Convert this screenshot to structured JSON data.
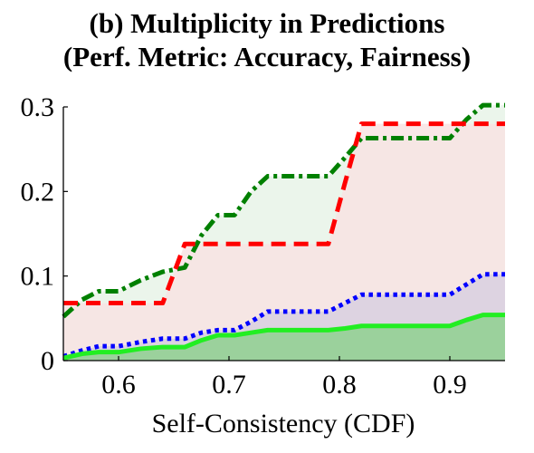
{
  "title_line1": "(b) Multiplicity in Predictions",
  "title_line2": "(Perf. Metric: Accuracy, Fairness)",
  "chart_data": {
    "type": "area",
    "title": "(b) Multiplicity in Predictions (Perf. Metric: Accuracy, Fairness)",
    "xlabel": "Self-Consistency (CDF)",
    "ylabel": "",
    "xlim": [
      0.55,
      0.95
    ],
    "ylim": [
      0,
      0.3
    ],
    "xticks": [
      "0.6",
      "0.7",
      "0.8",
      "0.9"
    ],
    "yticks": [
      "0",
      "0.1",
      "0.2",
      "0.3"
    ],
    "grid": false,
    "legend": "none",
    "series": [
      {
        "color": "#008000",
        "style": "dash-dot",
        "fill": "#e8f3e8",
        "x": [
          0.55,
          0.567,
          0.582,
          0.6,
          0.62,
          0.64,
          0.66,
          0.675,
          0.69,
          0.705,
          0.72,
          0.735,
          0.745,
          0.76,
          0.775,
          0.79,
          0.805,
          0.82,
          0.84,
          0.86,
          0.88,
          0.9,
          0.915,
          0.93,
          0.95
        ],
        "y": [
          0.052,
          0.072,
          0.082,
          0.082,
          0.095,
          0.105,
          0.11,
          0.148,
          0.172,
          0.172,
          0.2,
          0.218,
          0.218,
          0.218,
          0.218,
          0.218,
          0.24,
          0.263,
          0.263,
          0.263,
          0.263,
          0.263,
          0.285,
          0.302,
          0.302
        ]
      },
      {
        "color": "#ff0000",
        "style": "dashed",
        "fill": "#f8e3e3",
        "x": [
          0.55,
          0.567,
          0.582,
          0.6,
          0.62,
          0.64,
          0.66,
          0.675,
          0.69,
          0.705,
          0.72,
          0.735,
          0.745,
          0.76,
          0.775,
          0.79,
          0.805,
          0.82,
          0.84,
          0.86,
          0.88,
          0.9,
          0.915,
          0.93,
          0.95
        ],
        "y": [
          0.068,
          0.068,
          0.068,
          0.068,
          0.068,
          0.068,
          0.138,
          0.138,
          0.138,
          0.138,
          0.138,
          0.138,
          0.138,
          0.138,
          0.138,
          0.138,
          0.21,
          0.28,
          0.28,
          0.28,
          0.28,
          0.28,
          0.28,
          0.28,
          0.28
        ]
      },
      {
        "color": "#0000ff",
        "style": "dotted",
        "fill": "#d8cfe0",
        "x": [
          0.55,
          0.567,
          0.582,
          0.6,
          0.62,
          0.64,
          0.66,
          0.675,
          0.69,
          0.705,
          0.72,
          0.735,
          0.745,
          0.76,
          0.775,
          0.79,
          0.805,
          0.82,
          0.84,
          0.86,
          0.88,
          0.9,
          0.915,
          0.93,
          0.95
        ],
        "y": [
          0.005,
          0.012,
          0.017,
          0.017,
          0.022,
          0.026,
          0.026,
          0.033,
          0.036,
          0.036,
          0.046,
          0.058,
          0.058,
          0.058,
          0.058,
          0.058,
          0.068,
          0.078,
          0.078,
          0.078,
          0.078,
          0.078,
          0.09,
          0.102,
          0.102
        ]
      },
      {
        "color": "#22ee22",
        "style": "solid",
        "fill": "#8fd08f",
        "x": [
          0.55,
          0.567,
          0.582,
          0.6,
          0.62,
          0.64,
          0.66,
          0.675,
          0.69,
          0.705,
          0.72,
          0.735,
          0.745,
          0.76,
          0.775,
          0.79,
          0.805,
          0.82,
          0.84,
          0.86,
          0.88,
          0.9,
          0.915,
          0.93,
          0.95
        ],
        "y": [
          0.003,
          0.008,
          0.01,
          0.01,
          0.014,
          0.016,
          0.016,
          0.024,
          0.03,
          0.03,
          0.033,
          0.036,
          0.036,
          0.036,
          0.036,
          0.036,
          0.038,
          0.041,
          0.041,
          0.041,
          0.041,
          0.041,
          0.048,
          0.054,
          0.054
        ]
      }
    ]
  }
}
